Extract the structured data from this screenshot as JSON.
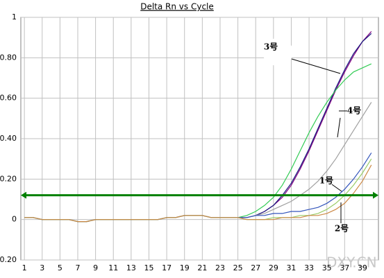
{
  "chart_data": {
    "type": "line",
    "title": "Delta Rn vs Cycle",
    "x": [
      1,
      2,
      3,
      4,
      5,
      6,
      7,
      8,
      9,
      10,
      11,
      12,
      13,
      14,
      15,
      16,
      17,
      18,
      19,
      20,
      21,
      22,
      23,
      24,
      25,
      26,
      27,
      28,
      29,
      30,
      31,
      32,
      33,
      34,
      35,
      36,
      37,
      38,
      39,
      40
    ],
    "xlim": [
      0.6,
      40.8
    ],
    "xticks": [
      1,
      3,
      5,
      7,
      9,
      11,
      13,
      15,
      17,
      19,
      21,
      23,
      25,
      27,
      29,
      31,
      33,
      35,
      37,
      39
    ],
    "ylim": [
      -0.2,
      1
    ],
    "yticks": [
      {
        "value": -0.2,
        "label": "-0.20"
      },
      0,
      {
        "value": 0.2,
        "label": "0.20"
      },
      {
        "value": 0.4,
        "label": "0.40"
      },
      {
        "value": 0.6,
        "label": "0.60"
      },
      {
        "value": 0.8,
        "label": "0.80"
      },
      1
    ],
    "grid": true,
    "threshold": 0.12,
    "threshold_color": "#008000",
    "series": [
      {
        "color": "#800080",
        "values": [
          0.01,
          0.01,
          0,
          0,
          0,
          0,
          -0.01,
          -0.01,
          0,
          0,
          0,
          0,
          0,
          0,
          0,
          0,
          0.01,
          0.01,
          0.02,
          0.02,
          0.02,
          0.01,
          0.01,
          0.01,
          0.01,
          0.01,
          0.02,
          0.04,
          0.07,
          0.11,
          0.17,
          0.25,
          0.34,
          0.44,
          0.54,
          0.64,
          0.73,
          0.81,
          0.88,
          0.93
        ]
      },
      {
        "color": "#1a1a80",
        "values": [
          0.01,
          0.01,
          0,
          0,
          0,
          0,
          -0.01,
          -0.01,
          0,
          0,
          0,
          0,
          0,
          0,
          0,
          0,
          0.01,
          0.01,
          0.02,
          0.02,
          0.02,
          0.01,
          0.01,
          0.01,
          0.01,
          0.01,
          0.02,
          0.04,
          0.07,
          0.12,
          0.18,
          0.26,
          0.35,
          0.45,
          0.55,
          0.65,
          0.74,
          0.82,
          0.88,
          0.92
        ]
      },
      {
        "color": "#33cc55",
        "values": [
          0.01,
          0.01,
          0,
          0,
          0,
          0,
          -0.01,
          -0.01,
          0,
          0,
          0,
          0,
          0,
          0,
          0,
          0,
          0.01,
          0.01,
          0.02,
          0.02,
          0.02,
          0.01,
          0.01,
          0.01,
          0.01,
          0.02,
          0.04,
          0.07,
          0.11,
          0.17,
          0.25,
          0.34,
          0.43,
          0.51,
          0.58,
          0.64,
          0.69,
          0.73,
          0.75,
          0.77
        ]
      },
      {
        "color": "#a0a0a0",
        "values": [
          0.01,
          0.01,
          0,
          0,
          0,
          0,
          -0.01,
          -0.01,
          0,
          0,
          0,
          0,
          0,
          0,
          0,
          0,
          0.01,
          0.01,
          0.02,
          0.02,
          0.02,
          0.01,
          0.01,
          0.01,
          0.01,
          0.01,
          0.02,
          0.03,
          0.05,
          0.07,
          0.09,
          0.12,
          0.15,
          0.19,
          0.24,
          0.3,
          0.37,
          0.44,
          0.51,
          0.58
        ]
      },
      {
        "color": "#3355bb",
        "values": [
          0.01,
          0.01,
          0,
          0,
          0,
          0,
          -0.01,
          -0.01,
          0,
          0,
          0,
          0,
          0,
          0,
          0,
          0,
          0.01,
          0.01,
          0.02,
          0.02,
          0.02,
          0.01,
          0.01,
          0.01,
          0.01,
          0.01,
          0.02,
          0.02,
          0.03,
          0.03,
          0.04,
          0.04,
          0.05,
          0.06,
          0.08,
          0.11,
          0.15,
          0.2,
          0.26,
          0.33
        ]
      },
      {
        "color": "#99cc66",
        "values": [
          0.01,
          0.01,
          0,
          0,
          0,
          0,
          -0.01,
          -0.01,
          0,
          0,
          0,
          0,
          0,
          0,
          0,
          0,
          0.01,
          0.01,
          0.02,
          0.02,
          0.02,
          0.01,
          0.01,
          0.01,
          0.01,
          0,
          0,
          0,
          0.01,
          0.01,
          0.01,
          0.02,
          0.02,
          0.03,
          0.05,
          0.08,
          0.12,
          0.17,
          0.23,
          0.3
        ]
      },
      {
        "color": "#cc8844",
        "values": [
          0.01,
          0.01,
          0,
          0,
          0,
          0,
          -0.01,
          -0.01,
          0,
          0,
          0,
          0,
          0,
          0,
          0,
          0,
          0.01,
          0.01,
          0.02,
          0.02,
          0.02,
          0.01,
          0.01,
          0.01,
          0.01,
          0,
          0,
          0,
          0,
          0.01,
          0.01,
          0.01,
          0.02,
          0.02,
          0.03,
          0.05,
          0.08,
          0.13,
          0.19,
          0.27
        ]
      }
    ],
    "annotations": [
      "3号",
      "4号",
      "1号",
      "2号"
    ],
    "watermark": "DXY.CN"
  }
}
